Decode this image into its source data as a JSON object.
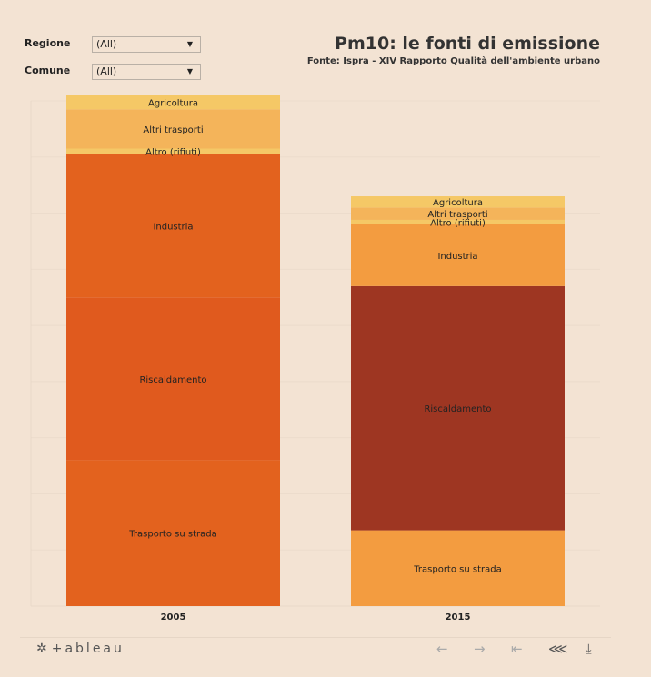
{
  "filters": [
    {
      "label": "Regione",
      "value": "(All)"
    },
    {
      "label": "Comune",
      "value": "(All)"
    }
  ],
  "colors": {
    "Agricoltura": "#f5c866",
    "Altri trasporti": "#f4b45a",
    "Altro (rifiuti)": "#f5c866",
    "Industria_2005": "#e3621e",
    "Riscaldamento_2005": "#e05a1e",
    "Trasporto_2005": "#e3621e",
    "Industria_2015": "#f39c40",
    "Riscaldamento_2015": "#9e3622",
    "Trasporto_2015": "#f39c40"
  },
  "chart_data": {
    "type": "bar",
    "stacked": true,
    "title": "Pm10: le fonti di emissione",
    "subtitle": "Fonte: Ispra - XIV Rapporto Qualità dell'ambiente urbano",
    "categories": [
      "2005",
      "2015"
    ],
    "series": [
      {
        "name": "Trasporto su strada",
        "values": [
          2.6,
          1.35
        ]
      },
      {
        "name": "Riscaldamento",
        "values": [
          2.9,
          4.35
        ]
      },
      {
        "name": "Industria",
        "values": [
          2.55,
          1.1
        ]
      },
      {
        "name": "Altro (rifiuti)",
        "values": [
          0.1,
          0.08
        ]
      },
      {
        "name": "Altri trasporti",
        "values": [
          0.7,
          0.22
        ]
      },
      {
        "name": "Agricoltura",
        "values": [
          0.25,
          0.2
        ]
      }
    ],
    "ylim": [
      0,
      9
    ],
    "grid": true
  },
  "toolbar": {
    "brand": "+ableau",
    "brand_mark": "✲",
    "buttons": [
      {
        "name": "undo-icon",
        "glyph": "←"
      },
      {
        "name": "redo-icon",
        "glyph": "→"
      },
      {
        "name": "revert-icon",
        "glyph": "⇤"
      },
      {
        "name": "share-icon",
        "glyph": "⋘"
      },
      {
        "name": "download-icon",
        "glyph": "⤓"
      }
    ]
  }
}
